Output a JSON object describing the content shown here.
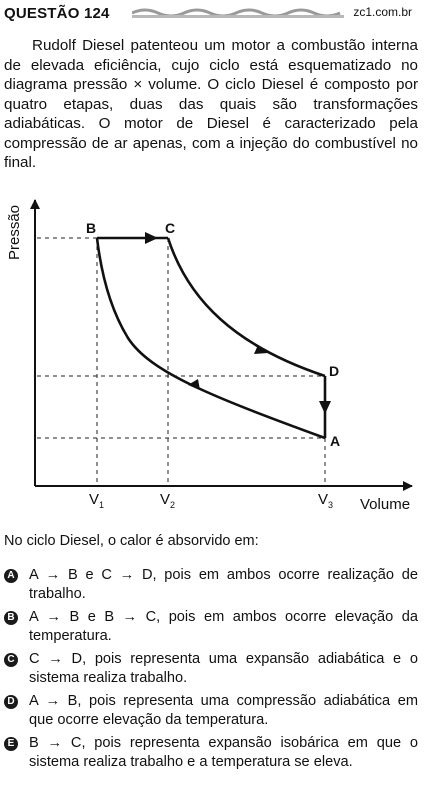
{
  "header": {
    "question_number": "QUESTÃO 124",
    "site": "zc1.com.br"
  },
  "intro": "Rudolf Diesel patenteou um motor a combustão interna de elevada eficiência, cujo ciclo está esquematizado no diagrama pressão × volume. O ciclo Diesel é composto por quatro etapas, duas das quais são transformações adiabáticas. O motor de Diesel é caracterizado pela compressão de ar apenas, com a injeção do combustível no final.",
  "diagram": {
    "y_axis_label": "Pressão",
    "x_axis_label": "Volume",
    "points": {
      "A": "A",
      "B": "B",
      "C": "C",
      "D": "D"
    },
    "ticks": [
      {
        "base": "V",
        "sub": "1"
      },
      {
        "base": "V",
        "sub": "2"
      },
      {
        "base": "V",
        "sub": "3"
      }
    ]
  },
  "question": "No ciclo Diesel, o calor é absorvido em:",
  "options": [
    {
      "letter": "A",
      "text": "A → B e C → D, pois em ambos ocorre realização de trabalho."
    },
    {
      "letter": "B",
      "text": "A → B e B → C, pois em ambos ocorre elevação da temperatura."
    },
    {
      "letter": "C",
      "text": "C → D, pois representa uma expansão adiabática e o sistema realiza trabalho."
    },
    {
      "letter": "D",
      "text": "A → B, pois representa uma compressão adiabática em que ocorre elevação da temperatura."
    },
    {
      "letter": "E",
      "text": "B → C, pois representa expansão isobárica em que o sistema realiza trabalho e a temperatura se eleva."
    }
  ]
}
